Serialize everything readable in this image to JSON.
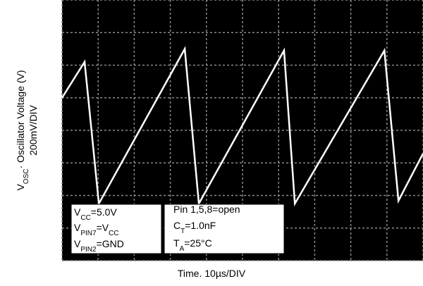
{
  "chart_data": {
    "type": "line",
    "y_label": [
      [
        {
          "text": "V"
        },
        {
          "text": "OSC",
          "sub": true
        },
        {
          "text": "· Oscillator Voltage (V)"
        }
      ],
      [
        {
          "text": "200mV/DIV"
        }
      ]
    ],
    "x_label": "Time. 10µs/DIV",
    "x": [
      0,
      6.25,
      10.2,
      34,
      37.9,
      61.5,
      64.5,
      89.3,
      93.2,
      100
    ],
    "values": [
      1000,
      1220,
      350,
      1300,
      350,
      1290,
      350,
      1290,
      368,
      657
    ],
    "color": "#ffffff",
    "background": "#000000",
    "grid": true,
    "xlim": [
      0,
      100
    ],
    "ylim": [
      0,
      1600
    ],
    "xticks": [
      0,
      10,
      20,
      30,
      40,
      50,
      60,
      70,
      80,
      90,
      100
    ],
    "yticks": [
      0,
      200,
      400,
      600,
      800,
      1000,
      1200,
      1400,
      1600
    ],
    "annotations": [
      [
        [
          {
            "text": "V"
          },
          {
            "text": "CC",
            "sub": true
          },
          {
            "text": "=5.0V"
          }
        ],
        [
          {
            "text": "V"
          },
          {
            "text": "PIN7",
            "sub": true
          },
          {
            "text": "=V"
          },
          {
            "text": "CC",
            "sub": true
          }
        ],
        [
          {
            "text": "V"
          },
          {
            "text": "PIN2",
            "sub": true
          },
          {
            "text": "=GND"
          }
        ]
      ],
      [
        [
          {
            "text": "Pin 1,5,8=open"
          }
        ],
        [
          {
            "text": "C"
          },
          {
            "text": "T",
            "sub": true
          },
          {
            "text": "=1.0nF"
          }
        ],
        [
          {
            "text": "T"
          },
          {
            "text": "A",
            "sub": true
          },
          {
            "text": "=25°C"
          }
        ]
      ]
    ]
  }
}
